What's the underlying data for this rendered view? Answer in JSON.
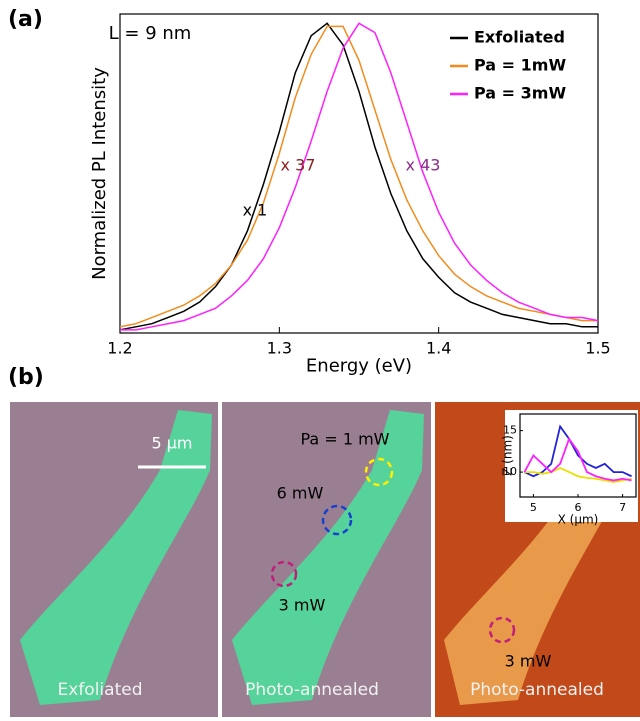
{
  "panel_labels": [
    "(a)",
    "(b)"
  ],
  "chart_data": [
    {
      "type": "line",
      "xlabel": "Energy (eV)",
      "ylabel": "Normalized PL Intensity",
      "xlim": [
        1.2,
        1.5
      ],
      "xticks": [
        1.2,
        1.3,
        1.4,
        1.5
      ],
      "ylim": [
        0,
        1.03
      ],
      "legend": "upper right",
      "annotations": [
        "L = 9 nm",
        "x 1",
        "x 37",
        "x 43"
      ],
      "x": [
        1.2,
        1.21,
        1.22,
        1.23,
        1.24,
        1.25,
        1.26,
        1.27,
        1.28,
        1.29,
        1.3,
        1.31,
        1.32,
        1.33,
        1.34,
        1.35,
        1.36,
        1.37,
        1.38,
        1.39,
        1.4,
        1.41,
        1.42,
        1.43,
        1.44,
        1.45,
        1.46,
        1.47,
        1.48,
        1.49,
        1.5
      ],
      "series": [
        {
          "name": "Exfoliated",
          "color": "#000000",
          "values": [
            0.01,
            0.02,
            0.03,
            0.05,
            0.07,
            0.1,
            0.15,
            0.22,
            0.33,
            0.48,
            0.65,
            0.84,
            0.96,
            1.0,
            0.93,
            0.78,
            0.6,
            0.45,
            0.33,
            0.24,
            0.18,
            0.13,
            0.1,
            0.08,
            0.06,
            0.05,
            0.04,
            0.03,
            0.03,
            0.02,
            0.02
          ]
        },
        {
          "name": "Pa = 1mW",
          "color": "#f28c1e",
          "values": [
            0.02,
            0.03,
            0.05,
            0.07,
            0.09,
            0.12,
            0.16,
            0.22,
            0.3,
            0.42,
            0.58,
            0.76,
            0.9,
            0.99,
            0.99,
            0.88,
            0.72,
            0.56,
            0.43,
            0.33,
            0.25,
            0.19,
            0.15,
            0.12,
            0.1,
            0.08,
            0.07,
            0.06,
            0.05,
            0.04,
            0.04
          ]
        },
        {
          "name": "Pa = 3mW",
          "color": "#ff20ff",
          "values": [
            0.01,
            0.01,
            0.02,
            0.03,
            0.04,
            0.06,
            0.08,
            0.12,
            0.17,
            0.24,
            0.34,
            0.47,
            0.62,
            0.78,
            0.92,
            1.0,
            0.97,
            0.84,
            0.68,
            0.52,
            0.39,
            0.29,
            0.22,
            0.17,
            0.13,
            0.1,
            0.08,
            0.06,
            0.05,
            0.05,
            0.04
          ]
        }
      ]
    },
    {
      "type": "line",
      "xlabel": "X (µm)",
      "ylabel": "Z (nm)",
      "xlim": [
        4.7,
        7.3
      ],
      "xticks": [
        5,
        6,
        7
      ],
      "ylim": [
        7,
        17
      ],
      "yticks": [
        10,
        15
      ],
      "x": [
        4.8,
        5.0,
        5.2,
        5.4,
        5.6,
        5.8,
        6.0,
        6.2,
        6.4,
        6.6,
        6.8,
        7.0,
        7.2
      ],
      "series": [
        {
          "color": "#2222dd",
          "values": [
            10,
            9.5,
            10,
            11,
            15.5,
            14,
            12,
            11,
            10.5,
            11,
            10,
            10,
            9.5
          ]
        },
        {
          "color": "#e8e000",
          "values": [
            10,
            10,
            9.8,
            10,
            10.5,
            10,
            9.5,
            9.3,
            9.2,
            9,
            8.8,
            9,
            9.2
          ]
        },
        {
          "color": "#ff20ff",
          "values": [
            10,
            12,
            11,
            10,
            11,
            14,
            12.5,
            10,
            9.5,
            9.2,
            9,
            9.2,
            9
          ]
        }
      ]
    }
  ],
  "images": [
    {
      "caption": "Exfoliated",
      "scale_bar": "5 µm"
    },
    {
      "caption": "Photo-annealed",
      "labels": [
        "Pa = 1 mW",
        "6 mW",
        "3 mW"
      ]
    },
    {
      "caption": "Photo-annealed",
      "labels": [
        "3 mW"
      ]
    }
  ]
}
